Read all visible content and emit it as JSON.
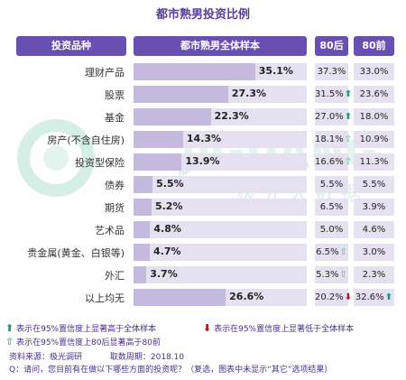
{
  "title": "都市熟男投资比例",
  "headers": {
    "category": "投资品种",
    "overall": "都市熟男全体样本",
    "post80": "80后",
    "pre80": "80前"
  },
  "watermark": {
    "en": "JIGUANG",
    "cn": "极 光 大 数 据"
  },
  "colors": {
    "header": "#6a4fb3",
    "bar": "#c5bade",
    "track": "#e6e1f0",
    "up_significant": "#1d9b7d",
    "down_significant": "#c0141c"
  },
  "chart_data": {
    "type": "bar",
    "orientation": "horizontal",
    "xlim": [
      0,
      50
    ],
    "categories": [
      "理财产品",
      "股票",
      "基金",
      "房产(不含自住房)",
      "投资型保险",
      "债券",
      "期货",
      "艺术品",
      "贵金属(黄金、白银等)",
      "外汇",
      "以上均无"
    ],
    "series": [
      {
        "name": "都市熟男全体样本",
        "values": [
          35.1,
          27.3,
          22.3,
          14.3,
          13.9,
          5.5,
          5.2,
          4.8,
          4.7,
          3.7,
          26.6
        ],
        "labels": [
          "35.1%",
          "27.3%",
          "22.3%",
          "14.3%",
          "13.9%",
          "5.5%",
          "5.2%",
          "4.8%",
          "4.7%",
          "3.7%",
          "26.6%"
        ]
      },
      {
        "name": "80后",
        "values": [
          37.3,
          31.5,
          27.0,
          18.1,
          16.6,
          5.5,
          6.5,
          5.0,
          6.5,
          5.3,
          20.2
        ],
        "labels": [
          "37.3%",
          "31.5%",
          "27.0%",
          "18.1%",
          "16.6%",
          "5.5%",
          "6.5%",
          "5.0%",
          "6.5%",
          "5.3%",
          "20.2%"
        ],
        "markers": [
          "",
          "up-solid",
          "up-solid",
          "up-hollow",
          "up-hollow",
          "",
          "",
          "",
          "up-hollow",
          "up-hollow",
          "down-solid"
        ]
      },
      {
        "name": "80前",
        "values": [
          33.0,
          23.6,
          18.0,
          10.9,
          11.3,
          5.5,
          3.9,
          4.6,
          3.0,
          2.3,
          32.6
        ],
        "labels": [
          "33.0%",
          "23.6%",
          "18.0%",
          "10.9%",
          "11.3%",
          "5.5%",
          "3.9%",
          "4.6%",
          "3.0%",
          "2.3%",
          "32.6%"
        ],
        "markers": [
          "",
          "",
          "",
          "",
          "",
          "",
          "",
          "",
          "",
          "",
          "up-solid"
        ]
      }
    ]
  },
  "notes": {
    "legend_up": "表示在95%置信度上显著高于全体样本",
    "legend_down": "表示在95%置信度上显著低于全体样本",
    "legend_hollow": "表示在95%置信度上80后显著高于80前",
    "source": "资料来源：极光调研",
    "period": "取数周期：2018.10",
    "question": "Q：请问，您目前有在做以下哪些方面的投资呢？（复选，图表中未显示“其它”选项结果）"
  }
}
